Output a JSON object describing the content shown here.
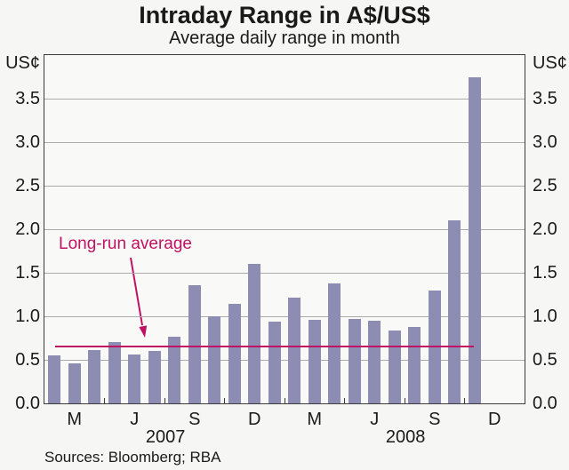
{
  "header": {
    "title": "Intraday Range in A$/US$",
    "subtitle": "Average daily range in month"
  },
  "axes": {
    "unit_left": "US¢",
    "unit_right": "US¢"
  },
  "annotation": {
    "label": "Long-run average"
  },
  "footer": {
    "sources": "Sources: Bloomberg; RBA"
  },
  "colors": {
    "bar": "#8D8DB3",
    "average_line": "#C01262",
    "grid": "#ABABAB",
    "axis": "#3C3C3C",
    "background": "#F6F6F4",
    "plot_background": "#F9F9F7",
    "text": "#1A1A1A"
  },
  "chart_data": {
    "type": "bar",
    "title": "Intraday Range in A$/US$",
    "subtitle": "Average daily range in month",
    "ylabel": "US¢",
    "xlabel": "",
    "ylim": [
      0,
      4
    ],
    "ytick_step": 0.5,
    "ytick_labels": [
      "0.0",
      "0.5",
      "1.0",
      "1.5",
      "2.0",
      "2.5",
      "3.0",
      "3.5"
    ],
    "grid": true,
    "legend": "none",
    "categories": [
      "Feb 2007",
      "Mar 2007",
      "Apr 2007",
      "May 2007",
      "Jun 2007",
      "Jul 2007",
      "Aug 2007",
      "Sep 2007",
      "Oct 2007",
      "Nov 2007",
      "Dec 2007",
      "Jan 2008",
      "Feb 2008",
      "Mar 2008",
      "Apr 2008",
      "May 2008",
      "Jun 2008",
      "Jul 2008",
      "Aug 2008",
      "Sep 2008",
      "Oct 2008",
      "Nov 2008"
    ],
    "values": [
      0.55,
      0.46,
      0.61,
      0.7,
      0.56,
      0.6,
      0.77,
      1.36,
      1.0,
      1.14,
      1.6,
      0.94,
      1.21,
      0.96,
      1.38,
      0.97,
      0.95,
      0.84,
      0.88,
      1.3,
      2.1,
      3.74
    ],
    "long_run_average": 0.65,
    "x_slots_total": 24,
    "x_letter_ticks": [
      {
        "label": "M",
        "slot": 1
      },
      {
        "label": "J",
        "slot": 4
      },
      {
        "label": "S",
        "slot": 7
      },
      {
        "label": "D",
        "slot": 10
      },
      {
        "label": "M",
        "slot": 13
      },
      {
        "label": "J",
        "slot": 16
      },
      {
        "label": "S",
        "slot": 19
      },
      {
        "label": "D",
        "slot": 22
      }
    ],
    "x_boundary_ticks": [
      3,
      6,
      9,
      12,
      15,
      18,
      21
    ],
    "year_labels": [
      {
        "label": "2007",
        "x_frac": 0.252
      },
      {
        "label": "2008",
        "x_frac": 0.752
      }
    ]
  }
}
